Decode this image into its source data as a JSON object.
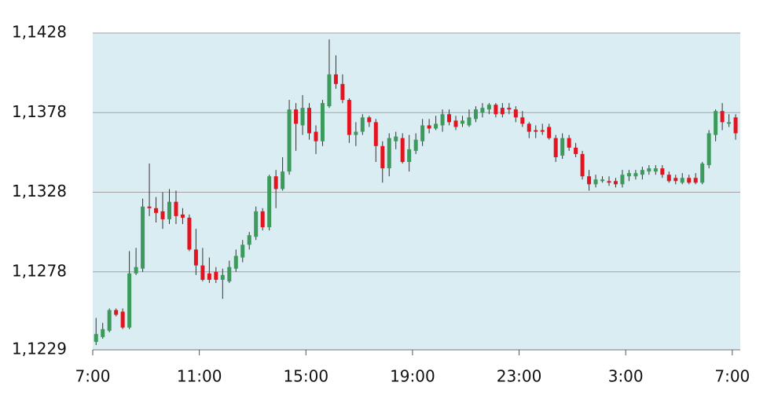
{
  "chart_data": {
    "type": "candlestick",
    "x": [
      0.125,
      0.375,
      0.625,
      0.875,
      1.125,
      1.375,
      1.625,
      1.875,
      2.125,
      2.375,
      2.625,
      2.875,
      3.125,
      3.375,
      3.625,
      3.875,
      4.125,
      4.375,
      4.625,
      4.875,
      5.125,
      5.375,
      5.625,
      5.875,
      6.125,
      6.375,
      6.625,
      6.875,
      7.125,
      7.375,
      7.625,
      7.875,
      8.125,
      8.375,
      8.625,
      8.875,
      9.125,
      9.375,
      9.625,
      9.875,
      10.125,
      10.375,
      10.625,
      10.875,
      11.125,
      11.375,
      11.625,
      11.875,
      12.125,
      12.375,
      12.625,
      12.875,
      13.125,
      13.375,
      13.625,
      13.875,
      14.125,
      14.375,
      14.625,
      14.875,
      15.125,
      15.375,
      15.625,
      15.875,
      16.125,
      16.375,
      16.625,
      16.875,
      17.125,
      17.375,
      17.625,
      17.875,
      18.125,
      18.375,
      18.625,
      18.875,
      19.125,
      19.375,
      19.625,
      19.875,
      20.125,
      20.375,
      20.625,
      20.875,
      21.125,
      21.375,
      21.625,
      21.875,
      22.125,
      22.375,
      22.625,
      22.875,
      23.125,
      23.375,
      23.625,
      23.875,
      24.125
    ],
    "open": [
      1.1234,
      1.1237,
      1.1241,
      1.1254,
      1.1253,
      1.1243,
      1.1277,
      1.128,
      1.1319,
      1.1318,
      1.1316,
      1.1311,
      1.1322,
      1.1314,
      1.1312,
      1.1292,
      1.1282,
      1.1277,
      1.1278,
      1.1273,
      1.1272,
      1.128,
      1.1287,
      1.1295,
      1.13,
      1.1316,
      1.1306,
      1.1338,
      1.133,
      1.1341,
      1.138,
      1.137,
      1.1381,
      1.1366,
      1.136,
      1.1382,
      1.1402,
      1.1396,
      1.1386,
      1.1364,
      1.1366,
      1.1375,
      1.1372,
      1.1357,
      1.1343,
      1.136,
      1.1362,
      1.1347,
      1.1354,
      1.136,
      1.137,
      1.1368,
      1.137,
      1.1377,
      1.1373,
      1.1371,
      1.137,
      1.1374,
      1.1378,
      1.138,
      1.1383,
      1.1381,
      1.1381,
      1.138,
      1.1375,
      1.1371,
      1.1367,
      1.1367,
      1.1369,
      1.1362,
      1.1351,
      1.1362,
      1.1356,
      1.1352,
      1.1338,
      1.1333,
      1.1335,
      1.1335,
      1.1335,
      1.1333,
      1.1338,
      1.1338,
      1.1339,
      1.1341,
      1.1341,
      1.1343,
      1.1339,
      1.1337,
      1.1334,
      1.1337,
      1.1337,
      1.1334,
      1.1345,
      1.1364,
      1.1379,
      1.1371,
      1.1375
    ],
    "high": [
      1.1249,
      1.1246,
      1.1255,
      1.1255,
      1.1255,
      1.1291,
      1.1293,
      1.1324,
      1.1346,
      1.1325,
      1.1328,
      1.133,
      1.1329,
      1.1318,
      1.1314,
      1.1305,
      1.1293,
      1.1287,
      1.1281,
      1.128,
      1.1285,
      1.1292,
      1.1298,
      1.1303,
      1.1319,
      1.1318,
      1.1339,
      1.1342,
      1.135,
      1.1386,
      1.1384,
      1.1389,
      1.1384,
      1.137,
      1.1386,
      1.1424,
      1.1414,
      1.1402,
      1.1387,
      1.1372,
      1.1377,
      1.1376,
      1.1374,
      1.136,
      1.1365,
      1.1366,
      1.1365,
      1.1364,
      1.1365,
      1.1374,
      1.1374,
      1.1376,
      1.138,
      1.138,
      1.1376,
      1.1376,
      1.138,
      1.1382,
      1.1384,
      1.1384,
      1.1384,
      1.1384,
      1.1384,
      1.1382,
      1.1379,
      1.1372,
      1.137,
      1.1371,
      1.1371,
      1.1364,
      1.1365,
      1.1364,
      1.1359,
      1.1354,
      1.1342,
      1.1339,
      1.1338,
      1.1338,
      1.1337,
      1.1342,
      1.1342,
      1.1342,
      1.1344,
      1.1345,
      1.1345,
      1.1345,
      1.1341,
      1.1339,
      1.134,
      1.1339,
      1.134,
      1.1347,
      1.1367,
      1.138,
      1.1384,
      1.1377,
      1.1377
    ],
    "low": [
      1.1232,
      1.1236,
      1.124,
      1.125,
      1.1242,
      1.1242,
      1.1276,
      1.1278,
      1.1313,
      1.1309,
      1.1305,
      1.1308,
      1.1308,
      1.1308,
      1.1291,
      1.1276,
      1.1272,
      1.1271,
      1.1271,
      1.1261,
      1.1271,
      1.1278,
      1.1284,
      1.1292,
      1.1298,
      1.1304,
      1.1304,
      1.1318,
      1.1329,
      1.1339,
      1.1354,
      1.1364,
      1.1361,
      1.1352,
      1.1357,
      1.1381,
      1.1393,
      1.1384,
      1.1359,
      1.1357,
      1.1364,
      1.1369,
      1.1347,
      1.1334,
      1.1338,
      1.1355,
      1.1346,
      1.1341,
      1.1352,
      1.1357,
      1.1365,
      1.1367,
      1.1366,
      1.137,
      1.1367,
      1.1369,
      1.1369,
      1.1372,
      1.1375,
      1.1377,
      1.1375,
      1.1375,
      1.1377,
      1.1372,
      1.1369,
      1.1362,
      1.1362,
      1.1364,
      1.1361,
      1.1347,
      1.1349,
      1.1354,
      1.135,
      1.1336,
      1.1329,
      1.1331,
      1.1334,
      1.1332,
      1.1331,
      1.1331,
      1.1335,
      1.1336,
      1.1336,
      1.1339,
      1.1339,
      1.1337,
      1.1334,
      1.1333,
      1.1333,
      1.1333,
      1.1333,
      1.1333,
      1.1343,
      1.136,
      1.1367,
      1.1369,
      1.1361
    ],
    "close": [
      1.1239,
      1.1242,
      1.1254,
      1.1251,
      1.1243,
      1.1277,
      1.1281,
      1.1319,
      1.1318,
      1.1315,
      1.1311,
      1.1322,
      1.1313,
      1.1312,
      1.1292,
      1.1282,
      1.1273,
      1.1273,
      1.1273,
      1.1276,
      1.1281,
      1.1288,
      1.1295,
      1.1301,
      1.1316,
      1.1306,
      1.1338,
      1.133,
      1.1341,
      1.138,
      1.1371,
      1.1381,
      1.1365,
      1.136,
      1.1384,
      1.1402,
      1.1396,
      1.1386,
      1.1364,
      1.1366,
      1.1375,
      1.1372,
      1.1357,
      1.1343,
      1.1362,
      1.1363,
      1.1347,
      1.1355,
      1.1361,
      1.137,
      1.1368,
      1.1371,
      1.1377,
      1.1372,
      1.1369,
      1.1373,
      1.1375,
      1.138,
      1.1381,
      1.1383,
      1.1377,
      1.1377,
      1.138,
      1.1375,
      1.1371,
      1.1366,
      1.1366,
      1.1366,
      1.1362,
      1.135,
      1.1362,
      1.1356,
      1.1352,
      1.1338,
      1.1333,
      1.1336,
      1.1336,
      1.1334,
      1.1333,
      1.1339,
      1.134,
      1.134,
      1.1342,
      1.1343,
      1.1343,
      1.1339,
      1.1335,
      1.1335,
      1.1337,
      1.1334,
      1.1334,
      1.1346,
      1.1365,
      1.1379,
      1.1372,
      1.1372,
      1.1365
    ],
    "up_color": "#3b9a5c",
    "down_color": "#e3141f",
    "xlim": [
      0,
      24.3
    ],
    "xticks": [
      {
        "value": 0,
        "label": "7:00"
      },
      {
        "value": 4,
        "label": "11:00"
      },
      {
        "value": 8,
        "label": "15:00"
      },
      {
        "value": 12,
        "label": "19:00"
      },
      {
        "value": 16,
        "label": "23:00"
      },
      {
        "value": 20,
        "label": "3:00"
      },
      {
        "value": 24,
        "label": "7:00"
      }
    ],
    "ylim": [
      1.1229,
      1.1428
    ],
    "yticks": [
      {
        "value": 1.1229,
        "label": "1,1229"
      },
      {
        "value": 1.1278,
        "label": "1,1278"
      },
      {
        "value": 1.1328,
        "label": "1,1328"
      },
      {
        "value": 1.1378,
        "label": "1,1378"
      },
      {
        "value": 1.1428,
        "label": "1,1428"
      }
    ],
    "grid": true
  }
}
